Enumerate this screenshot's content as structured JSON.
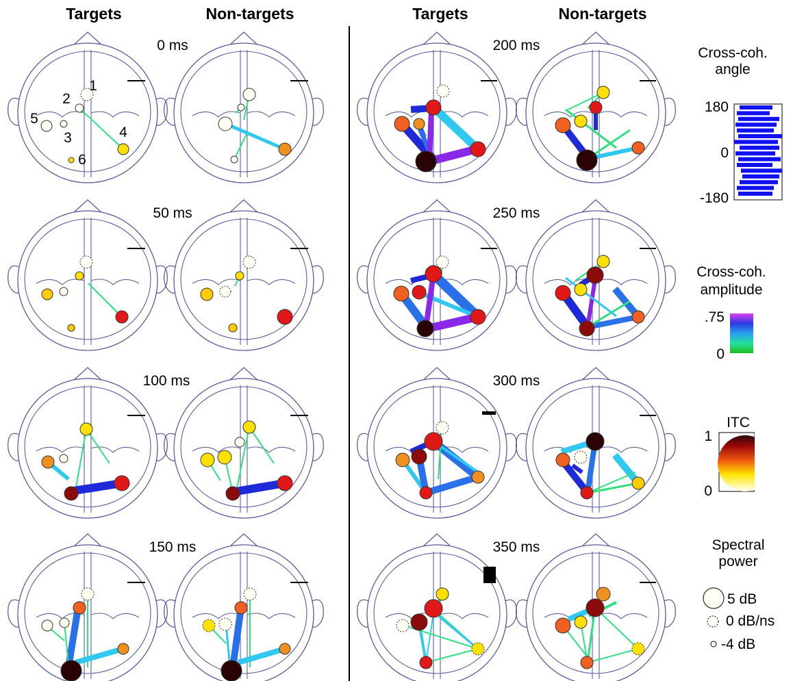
{
  "headers": [
    "Targets",
    "Non-targets",
    "Targets",
    "Non-targets"
  ],
  "time_labels": [
    "0 ms",
    "50 ms",
    "100 ms",
    "150 ms",
    "200 ms",
    "250 ms",
    "300 ms",
    "350 ms"
  ],
  "component_labels": [
    "1",
    "2",
    "3",
    "4",
    "5",
    "6"
  ],
  "legend": {
    "angle_title": [
      "Cross-coh.",
      "angle"
    ],
    "angle_ticks": [
      "180",
      "0",
      "-180"
    ],
    "amplitude_title": [
      "Cross-coh.",
      "amplitude"
    ],
    "amplitude_ticks": [
      ".75",
      "0"
    ],
    "itc_title": "ITC",
    "itc_ticks": [
      "1",
      "0"
    ],
    "power_title": [
      "Spectral",
      "power"
    ],
    "power_entries": [
      "5 dB",
      "0 dB/ns",
      "-4 dB"
    ]
  },
  "colors": {
    "head_outline": "#5a5f9e",
    "itc_low": "#fffbe6",
    "itc_mid": "#ffd400",
    "itc_high": "#3a0808",
    "coh_low": "#27d84a",
    "coh_mid": "#2a8de8",
    "coh_high": "#9b27e8"
  }
}
